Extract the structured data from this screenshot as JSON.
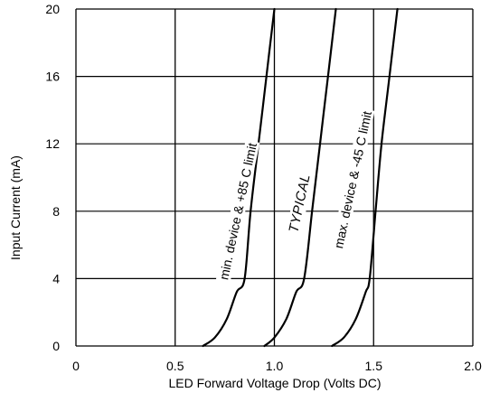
{
  "chart_data": {
    "type": "line",
    "xlabel": "LED Forward Voltage Drop (Volts DC)",
    "ylabel": "Input Current (mA)",
    "xlim": [
      0,
      2.0
    ],
    "ylim": [
      0,
      20
    ],
    "x_ticks": [
      "0",
      "0.5",
      "1.0",
      "1.5",
      "2.0"
    ],
    "y_ticks": [
      "0",
      "4",
      "8",
      "12",
      "16",
      "20"
    ],
    "grid": true,
    "series": [
      {
        "name": "min. device & +85 C limit",
        "points": [
          [
            0.64,
            0
          ],
          [
            0.7,
            0.5
          ],
          [
            0.76,
            1.6
          ],
          [
            0.81,
            3.2
          ],
          [
            0.85,
            4.0
          ],
          [
            0.88,
            8.0
          ],
          [
            0.92,
            12.0
          ],
          [
            0.96,
            16.0
          ],
          [
            1.0,
            20.0
          ]
        ]
      },
      {
        "name": "TYPICAL",
        "points": [
          [
            0.95,
            0
          ],
          [
            1.0,
            0.5
          ],
          [
            1.06,
            1.6
          ],
          [
            1.11,
            3.2
          ],
          [
            1.15,
            4.0
          ],
          [
            1.19,
            8.0
          ],
          [
            1.23,
            12.0
          ],
          [
            1.27,
            16.0
          ],
          [
            1.31,
            20.0
          ]
        ]
      },
      {
        "name": "max. device & -45 C limit",
        "points": [
          [
            1.29,
            0
          ],
          [
            1.35,
            0.5
          ],
          [
            1.41,
            1.6
          ],
          [
            1.46,
            3.2
          ],
          [
            1.48,
            4.0
          ],
          [
            1.51,
            8.0
          ],
          [
            1.54,
            12.0
          ],
          [
            1.58,
            16.0
          ],
          [
            1.62,
            20.0
          ]
        ]
      }
    ]
  }
}
